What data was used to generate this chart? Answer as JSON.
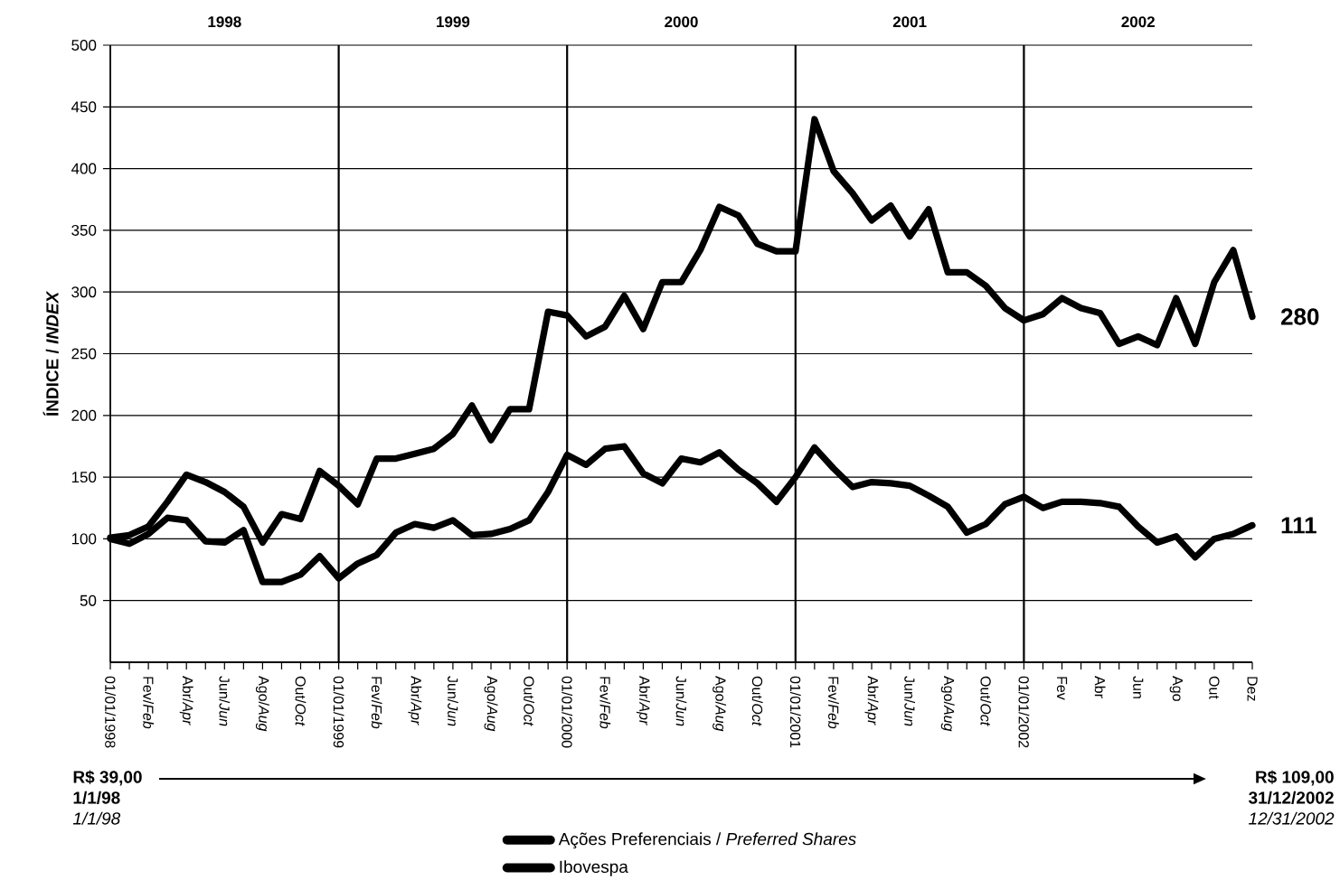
{
  "chart_data": {
    "type": "line",
    "ylabel": "ÍNDICE / *INDEX*",
    "categories": [
      "01/01/1998",
      null,
      "Fev/*Feb*",
      null,
      "Abr/*Apr*",
      null,
      "Jun/*Jun*",
      null,
      "Ago/*Aug*",
      null,
      "Out/*Oct*",
      null,
      "01/01/1999",
      null,
      "Fev/*Feb*",
      null,
      "Abr/*Apr*",
      null,
      "Jun/*Jun*",
      null,
      "Ago/*Aug*",
      null,
      "Out/*Oct*",
      null,
      "01/01/2000",
      null,
      "Fev/*Feb*",
      null,
      "Abr/*Apr*",
      null,
      "Jun/*Jun*",
      null,
      "Ago/*Aug*",
      null,
      "Out/*Oct*",
      null,
      "01/01/2001",
      null,
      "Fev/*Feb*",
      null,
      "Abr/*Apr*",
      null,
      "Jun/*Jun*",
      null,
      "Ago/*Aug*",
      null,
      "Out/*Oct*",
      null,
      "01/01/2002",
      null,
      "Fev",
      null,
      "Abr",
      null,
      "Jun",
      null,
      "Ago",
      null,
      "Out",
      null,
      "Dez"
    ],
    "series": [
      {
        "name": "Ações Preferenciais / *Preferred Shares*",
        "color": "#000000",
        "values": [
          101,
          103,
          110,
          130,
          152,
          146,
          138,
          126,
          97,
          120,
          116,
          155,
          143,
          128,
          165,
          165,
          169,
          173,
          185,
          208,
          180,
          205,
          205,
          284,
          281,
          264,
          272,
          297,
          270,
          308,
          308,
          334,
          369,
          362,
          339,
          333,
          333,
          440,
          398,
          380,
          358,
          370,
          345,
          367,
          316,
          316,
          305,
          287,
          277,
          282,
          295,
          287,
          283,
          258,
          264,
          257,
          295,
          258,
          308,
          334,
          280
        ],
        "value_labels": [
          null,
          null,
          null,
          null,
          null,
          null,
          null,
          null,
          null,
          null,
          null,
          null,
          null,
          null,
          null,
          null,
          null,
          null,
          null,
          null,
          null,
          null,
          null,
          null,
          null,
          null,
          null,
          null,
          null,
          null,
          null,
          null,
          null,
          null,
          null,
          null,
          null,
          null,
          null,
          null,
          null,
          null,
          null,
          null,
          null,
          null,
          null,
          null,
          null,
          null,
          null,
          null,
          null,
          null,
          null,
          null,
          null,
          null,
          null,
          null,
          "280"
        ]
      },
      {
        "name": "Ibovespa",
        "color": "#000000",
        "values": [
          100,
          96,
          104,
          117,
          115,
          98,
          97,
          107,
          65,
          65,
          71,
          86,
          68,
          80,
          87,
          105,
          112,
          109,
          115,
          103,
          104,
          108,
          115,
          138,
          168,
          160,
          173,
          175,
          153,
          145,
          165,
          162,
          170,
          156,
          145,
          130,
          150,
          174,
          157,
          142,
          146,
          145,
          143,
          135,
          126,
          105,
          112,
          128,
          134,
          125,
          130,
          130,
          129,
          126,
          110,
          97,
          102,
          85,
          100,
          104,
          111
        ],
        "value_labels": [
          null,
          null,
          null,
          null,
          null,
          null,
          null,
          null,
          null,
          null,
          null,
          null,
          null,
          null,
          null,
          null,
          null,
          null,
          null,
          null,
          null,
          null,
          null,
          null,
          null,
          null,
          null,
          null,
          null,
          null,
          null,
          null,
          null,
          null,
          null,
          null,
          null,
          null,
          null,
          null,
          null,
          null,
          null,
          null,
          null,
          null,
          null,
          null,
          null,
          null,
          null,
          null,
          null,
          null,
          null,
          null,
          null,
          null,
          null,
          null,
          "111"
        ]
      }
    ],
    "ylim": [
      0,
      500
    ],
    "yticks": [
      50,
      100,
      150,
      200,
      250,
      300,
      350,
      400,
      450,
      500
    ],
    "grid": "y",
    "legend": "bottom",
    "ref_lines": [
      {
        "axis": "x",
        "value": "01/01/1999",
        "color": "#000000"
      },
      {
        "axis": "x",
        "value": "01/01/2000",
        "color": "#000000"
      },
      {
        "axis": "x",
        "value": "01/01/2001",
        "color": "#000000"
      },
      {
        "axis": "x",
        "value": "01/01/2002",
        "color": "#000000"
      }
    ],
    "annotations": [
      "1998",
      "1999",
      "2000",
      "2001",
      "2002",
      "R$ 39,00",
      "1/1/98",
      "*1/1/98*",
      "R$ 109,00",
      "31/12/2002",
      "*12/31/2002*"
    ]
  }
}
